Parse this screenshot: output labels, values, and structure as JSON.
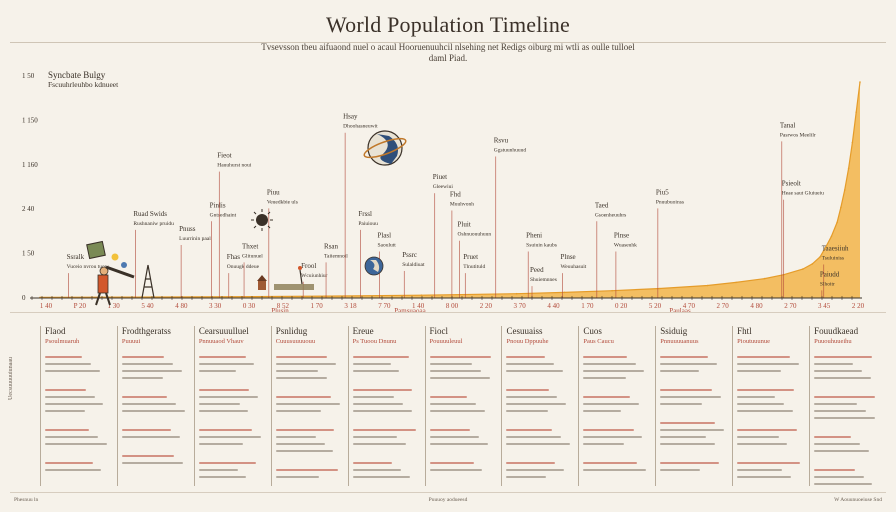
{
  "header": {
    "title": "World Population Timeline",
    "subtitle": "Tvsevsson tbeu aifuaond nuel o acaul Hooruenuuhcil nlsehing net Redigs oiburg mi wtli as oulle tulloel daml Piad."
  },
  "chart_data": {
    "type": "area",
    "title": "World Population Timeline",
    "xlabel": "",
    "ylabel": "",
    "y_tick_labels": [
      "0",
      "1 50",
      "2 40",
      "1 160",
      "1 150",
      "1 50"
    ],
    "x_tick_labels": [
      "1 40",
      "P 20",
      "1 30",
      "5 40",
      "4 80",
      "3 30",
      "0 30",
      "8 52",
      "1 70",
      "3 18",
      "7 70",
      "1 40",
      "8 00",
      "2 20",
      "3 70",
      "4 40",
      "1 70",
      "0 20",
      "5 20",
      "4 70",
      "2 70",
      "4 80",
      "2 70",
      "3 45",
      "2 20"
    ],
    "x": [
      0,
      100,
      200,
      300,
      400,
      500,
      550,
      600,
      650,
      700,
      730,
      760,
      780,
      800,
      810,
      818,
      824,
      830,
      836,
      840,
      844,
      848,
      852,
      856,
      860
    ],
    "values": [
      0.3,
      0.4,
      0.6,
      0.9,
      1.3,
      2.0,
      2.6,
      3.4,
      4.4,
      5.8,
      7.2,
      9.0,
      10.8,
      13.4,
      15.8,
      19.0,
      23.5,
      28.5,
      35.0,
      42.0,
      50.0,
      60.0,
      72.0,
      86.0,
      100.0
    ],
    "xlim": [
      0,
      860
    ],
    "ylim": [
      0,
      100
    ],
    "grid": false,
    "fill_color": "#f2b54a",
    "stroke_color": "#e59c2a",
    "annotations": [
      {
        "x": 30,
        "h": 0.18,
        "title": "Ssralk",
        "text": "Vuceio nvrou tuow"
      },
      {
        "x": 100,
        "h": 0.38,
        "title": "Ruad Swids",
        "text": "Rushnaniw pruidu"
      },
      {
        "x": 148,
        "h": 0.31,
        "title": "Pnuss",
        "text": "Luurrinin paal"
      },
      {
        "x": 180,
        "h": 0.42,
        "title": "Pinlis",
        "text": "Gntsedhaint"
      },
      {
        "x": 198,
        "h": 0.18,
        "title": "Fhas",
        "text": "Onuugk ddeue"
      },
      {
        "x": 188,
        "h": 0.65,
        "title": "Fieot",
        "text": "Hauuhurst noui"
      },
      {
        "x": 214,
        "h": 0.23,
        "title": "Thxet",
        "text": "Glitunuel"
      },
      {
        "x": 240,
        "h": 0.48,
        "title": "Piuu",
        "text": "Veuedkbie uls"
      },
      {
        "x": 276,
        "h": 0.14,
        "title": "Frool",
        "text": "Wcuiunhiur"
      },
      {
        "x": 300,
        "h": 0.23,
        "title": "Rsan",
        "text": "Taiiemnoil"
      },
      {
        "x": 320,
        "h": 0.83,
        "title": "Hsay",
        "text": "Dhoohasneuwit"
      },
      {
        "x": 336,
        "h": 0.38,
        "title": "Frssl",
        "text": "Paiuiouu"
      },
      {
        "x": 356,
        "h": 0.28,
        "title": "Plasl",
        "text": "Saoulutt"
      },
      {
        "x": 382,
        "h": 0.19,
        "title": "Pssrc",
        "text": "Sulaldiuat"
      },
      {
        "x": 414,
        "h": 0.55,
        "title": "Piuet",
        "text": "Gleewiui"
      },
      {
        "x": 432,
        "h": 0.47,
        "title": "Fhd",
        "text": "Muuhvonh"
      },
      {
        "x": 440,
        "h": 0.33,
        "title": "Pluit",
        "text": "Oshnuouuhuun"
      },
      {
        "x": 446,
        "h": 0.18,
        "title": "Pruet",
        "text": "Tlnutituld"
      },
      {
        "x": 478,
        "h": 0.72,
        "title": "Rsvu",
        "text": "Ggstuunhuuud"
      },
      {
        "x": 512,
        "h": 0.28,
        "title": "Pheni",
        "text": "Ssuiuin kaubs"
      },
      {
        "x": 516,
        "h": 0.12,
        "title": "Peed",
        "text": "Shuiemnnes"
      },
      {
        "x": 548,
        "h": 0.18,
        "title": "Plnse",
        "text": "Weuuhasuit"
      },
      {
        "x": 584,
        "h": 0.42,
        "title": "Taed",
        "text": "Gsoenheuuhrs"
      },
      {
        "x": 604,
        "h": 0.28,
        "title": "Plnse",
        "text": "Wuaseuhk"
      },
      {
        "x": 648,
        "h": 0.48,
        "title": "Piu5",
        "text": "Pnuubuoinss"
      },
      {
        "x": 778,
        "h": 0.79,
        "title": "Tanal",
        "text": "Pasrwos Meelilr"
      },
      {
        "x": 780,
        "h": 0.52,
        "title": "Psieolt",
        "text": "Heae saut Gluiueiu"
      },
      {
        "x": 822,
        "h": 0.22,
        "title": "Taaesiiuh",
        "text": "Tsuluiniss"
      },
      {
        "x": 820,
        "h": 0.1,
        "title": "Paiudd",
        "text": "Slhoitr"
      }
    ],
    "legend_top_left": {
      "title": "Syncbate Bulgy",
      "text": "Fscuuhrleuhbo kdnueet"
    },
    "x_bottom_labels": [
      "Plusin",
      "Pamsuaoaa",
      "Paulaas"
    ]
  },
  "columns": [
    {
      "title": "Flaod",
      "sub": "Psoulmuaruh",
      "rows": [
        3,
        4,
        3,
        2
      ]
    },
    {
      "title": "Frodthgeratss",
      "sub": "Puuuui",
      "rows": [
        4,
        3,
        2,
        2
      ]
    },
    {
      "title": "Cearsuuulluel",
      "sub": "Pnnuuaod Vhauv",
      "rows": [
        3,
        4,
        3,
        3
      ]
    },
    {
      "title": "Psnlidug",
      "sub": "Cuuusuuuuouu",
      "rows": [
        4,
        3,
        4,
        2
      ]
    },
    {
      "title": "Ereue",
      "sub": "Ps Tuoou Dnunu",
      "rows": [
        3,
        4,
        3,
        3
      ]
    },
    {
      "title": "Fiocl",
      "sub": "Pouuuuleuul",
      "rows": [
        4,
        3,
        3,
        2
      ]
    },
    {
      "title": "Cesuuaiss",
      "sub": "Pnouu Dppuuhe",
      "rows": [
        3,
        4,
        3,
        3
      ]
    },
    {
      "title": "Cuos",
      "sub": "Paus Caucu",
      "rows": [
        4,
        3,
        3,
        2
      ]
    },
    {
      "title": "Ssiduig",
      "sub": "Pnnuuuuanuus",
      "rows": [
        3,
        3,
        4,
        2
      ]
    },
    {
      "title": "Fhtl",
      "sub": "Pioutuuunue",
      "rows": [
        3,
        4,
        3,
        3
      ]
    },
    {
      "title": "Fouudkaead",
      "sub": "Puuouhuueihu",
      "rows": [
        4,
        4,
        3,
        3
      ]
    }
  ],
  "side_label": "Uecsuuuuuiunaau",
  "footer": {
    "left": "Phesnuu ln",
    "center": "Puuuoy aodueesd",
    "right": "W Aouunuoeiuse Snd"
  }
}
